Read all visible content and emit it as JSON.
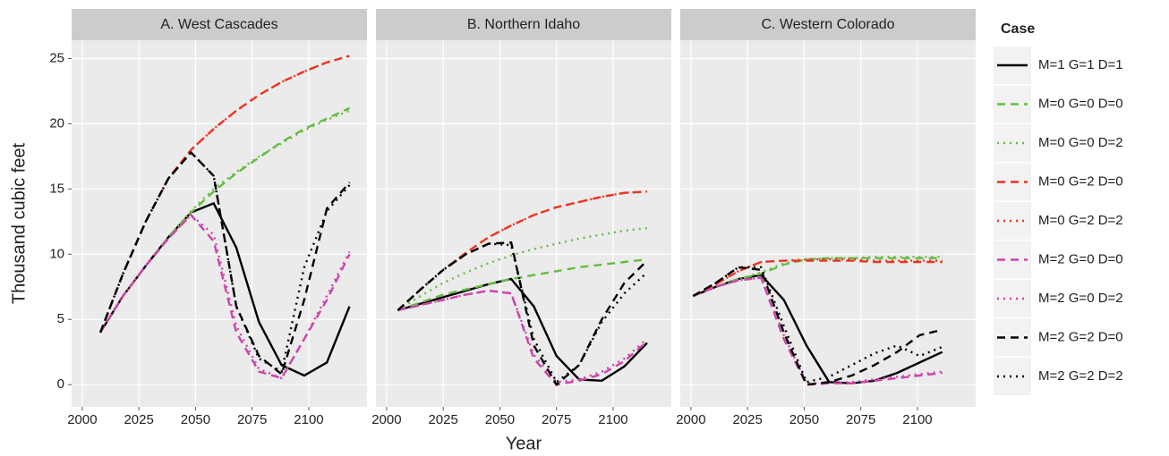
{
  "chart_data": {
    "type": "line",
    "ylabel": "Thousand cubic feet",
    "xlabel": "Year",
    "legend_title": "Case",
    "xlim": [
      1995.3,
      2125.7
    ],
    "ylim": [
      -1.7,
      26.4
    ],
    "xticks": [
      2000,
      2025,
      2050,
      2075,
      2100
    ],
    "yticks": [
      0,
      5,
      10,
      15,
      20,
      25
    ],
    "grid": true,
    "series": [
      {
        "name": "M=1 G=1 D=1",
        "color": "#000000",
        "dash": "solid"
      },
      {
        "name": "M=0 G=0 D=0",
        "color": "#66bb44",
        "dash": "dashed"
      },
      {
        "name": "M=0 G=0 D=2",
        "color": "#66bb44",
        "dash": "dotted"
      },
      {
        "name": "M=0 G=2 D=0",
        "color": "#ee3322",
        "dash": "dashed"
      },
      {
        "name": "M=0 G=2 D=2",
        "color": "#ee3322",
        "dash": "dotted"
      },
      {
        "name": "M=2 G=0 D=0",
        "color": "#cc44aa",
        "dash": "dashed"
      },
      {
        "name": "M=2 G=0 D=2",
        "color": "#cc44aa",
        "dash": "dotted"
      },
      {
        "name": "M=2 G=2 D=0",
        "color": "#000000",
        "dash": "dashed"
      },
      {
        "name": "M=2 G=2 D=2",
        "color": "#000000",
        "dash": "dotted"
      }
    ],
    "panels": [
      {
        "title": "A. West Cascades",
        "x": [
          2008,
          2018,
          2028,
          2038,
          2048,
          2058,
          2068,
          2078,
          2088,
          2098,
          2108,
          2118
        ],
        "values": [
          [
            4.0,
            6.8,
            9.1,
            11.3,
            13.2,
            13.9,
            10.5,
            4.8,
            1.5,
            0.7,
            1.7,
            6.0
          ],
          [
            4.0,
            6.8,
            9.1,
            11.3,
            13.2,
            14.8,
            16.2,
            17.4,
            18.6,
            19.6,
            20.4,
            21.2
          ],
          [
            4.0,
            6.8,
            9.1,
            11.3,
            13.3,
            15.0,
            16.3,
            17.5,
            18.5,
            19.5,
            20.3,
            21.0
          ],
          [
            4.0,
            8.5,
            12.5,
            15.8,
            18.0,
            19.6,
            21.0,
            22.2,
            23.2,
            24.0,
            24.7,
            25.2
          ],
          [
            4.0,
            8.5,
            12.5,
            15.8,
            18.0,
            19.6,
            21.0,
            22.2,
            23.2,
            24.0,
            24.7,
            25.2
          ],
          [
            4.0,
            6.8,
            9.1,
            11.2,
            13.0,
            11.0,
            4.0,
            1.0,
            0.5,
            3.5,
            6.5,
            10.0
          ],
          [
            4.0,
            6.8,
            9.1,
            11.2,
            13.0,
            11.5,
            4.5,
            1.2,
            0.5,
            3.5,
            6.8,
            10.2
          ],
          [
            4.0,
            8.5,
            12.5,
            15.8,
            17.8,
            16.0,
            6.0,
            2.2,
            0.8,
            6.5,
            13.5,
            15.5
          ],
          [
            4.0,
            8.5,
            12.5,
            15.8,
            17.8,
            16.0,
            6.0,
            2.0,
            1.0,
            9.0,
            13.3,
            15.3
          ]
        ]
      },
      {
        "title": "B. Northern Idaho",
        "x": [
          2005,
          2015,
          2025,
          2035,
          2045,
          2055,
          2065,
          2075,
          2085,
          2095,
          2105,
          2115
        ],
        "values": [
          [
            5.7,
            6.2,
            6.7,
            7.2,
            7.7,
            8.1,
            6.0,
            2.2,
            0.4,
            0.3,
            1.4,
            3.2
          ],
          [
            5.7,
            6.3,
            6.9,
            7.3,
            7.7,
            8.1,
            8.4,
            8.7,
            9.0,
            9.2,
            9.4,
            9.6
          ],
          [
            5.7,
            6.8,
            7.8,
            8.6,
            9.3,
            9.9,
            10.4,
            10.8,
            11.2,
            11.5,
            11.8,
            12.0
          ],
          [
            5.7,
            7.3,
            8.8,
            10.1,
            11.3,
            12.2,
            13.0,
            13.6,
            14.0,
            14.4,
            14.7,
            14.8
          ],
          [
            5.7,
            7.3,
            8.8,
            10.1,
            11.3,
            12.2,
            13.0,
            13.6,
            14.0,
            14.4,
            14.7,
            14.8
          ],
          [
            5.7,
            6.1,
            6.5,
            6.9,
            7.2,
            7.0,
            2.0,
            0.0,
            0.3,
            0.8,
            1.8,
            3.3
          ],
          [
            5.7,
            6.1,
            6.5,
            6.9,
            7.2,
            7.0,
            2.3,
            0.2,
            0.4,
            1.0,
            2.0,
            3.5
          ],
          [
            5.7,
            7.3,
            8.8,
            10.0,
            10.8,
            10.9,
            3.0,
            0.0,
            1.5,
            5.0,
            7.8,
            9.5
          ],
          [
            5.7,
            7.3,
            8.8,
            10.0,
            10.8,
            10.7,
            3.5,
            0.2,
            1.5,
            4.8,
            7.0,
            8.6
          ]
        ]
      },
      {
        "title": "C. Western Colorado",
        "x": [
          2001,
          2011,
          2021,
          2031,
          2041,
          2051,
          2061,
          2071,
          2081,
          2091,
          2101,
          2111
        ],
        "values": [
          [
            6.8,
            7.5,
            8.1,
            8.4,
            6.5,
            3.0,
            0.2,
            0.1,
            0.3,
            0.9,
            1.7,
            2.5
          ],
          [
            6.8,
            7.5,
            8.1,
            8.5,
            9.2,
            9.6,
            9.7,
            9.7,
            9.7,
            9.7,
            9.7,
            9.7
          ],
          [
            6.8,
            7.5,
            8.1,
            8.6,
            9.3,
            9.6,
            9.7,
            9.7,
            9.8,
            9.8,
            9.8,
            9.8
          ],
          [
            6.8,
            7.7,
            8.7,
            9.4,
            9.5,
            9.5,
            9.5,
            9.5,
            9.4,
            9.4,
            9.4,
            9.4
          ],
          [
            6.8,
            7.7,
            8.7,
            9.4,
            9.5,
            9.6,
            9.6,
            9.6,
            9.5,
            9.5,
            9.5,
            9.5
          ],
          [
            6.8,
            7.5,
            8.0,
            8.2,
            3.5,
            0.0,
            0.1,
            0.1,
            0.3,
            0.5,
            0.7,
            0.9
          ],
          [
            6.8,
            7.5,
            8.0,
            8.2,
            3.8,
            0.1,
            0.1,
            0.2,
            0.4,
            0.6,
            0.8,
            1.0
          ],
          [
            6.8,
            7.8,
            9.0,
            8.8,
            4.0,
            0.0,
            0.2,
            0.7,
            1.5,
            2.5,
            3.8,
            4.2
          ],
          [
            6.8,
            7.8,
            9.0,
            9.0,
            4.5,
            0.2,
            0.6,
            1.5,
            2.4,
            3.0,
            2.2,
            2.9
          ]
        ]
      }
    ]
  }
}
